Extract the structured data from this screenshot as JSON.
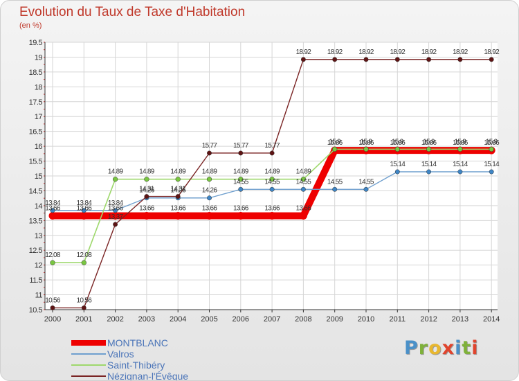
{
  "title": "Evolution du Taux de Taxe d'Habitation",
  "unit": "(en %)",
  "brand": {
    "letters": [
      {
        "ch": "P",
        "color": "#4a90c8"
      },
      {
        "ch": "r",
        "color": "#7fb13a"
      },
      {
        "ch": "o",
        "color": "#e8b72f"
      },
      {
        "ch": "x",
        "color": "#e0442d"
      },
      {
        "ch": "i",
        "color": "#4a90c8"
      },
      {
        "ch": "t",
        "color": "#7fb13a"
      },
      {
        "ch": "i",
        "color": "#e0442d"
      }
    ]
  },
  "chart_data": {
    "type": "line",
    "title": "Evolution du Taux de Taxe d'Habitation",
    "ylabel": "(en %)",
    "x": [
      "2000",
      "2001",
      "2002",
      "2003",
      "2004",
      "2005",
      "2006",
      "2007",
      "2008",
      "2009",
      "2010",
      "2011",
      "2012",
      "2013",
      "2014"
    ],
    "ylim": [
      10.5,
      19.5
    ],
    "yticks": [
      "10.5",
      "11",
      "11.5",
      "12",
      "12.5",
      "13",
      "13.5",
      "14",
      "14.5",
      "15",
      "15.5",
      "16",
      "16.5",
      "17",
      "17.5",
      "18",
      "18.5",
      "19",
      "19.5"
    ],
    "grid": true,
    "legend_position": "bottom-left",
    "series": [
      {
        "name": "MONTBLANC",
        "color": "#ee0000",
        "point_color": "#ee0000",
        "values": [
          13.66,
          13.66,
          13.66,
          13.66,
          13.66,
          13.66,
          13.66,
          13.66,
          13.66,
          15.86,
          15.86,
          15.86,
          15.86,
          15.86,
          15.86
        ],
        "labels": [
          "13.66",
          "13.66",
          "13.66",
          "13.66",
          "13.66",
          "13.66",
          "13.66",
          "13.66",
          "13.66",
          "15.86",
          "15.86",
          "15.86",
          "15.86",
          "15.86",
          "15.86"
        ]
      },
      {
        "name": "Valros",
        "color": "#6f9fce",
        "point_color": "#3f86c6",
        "values": [
          13.84,
          13.84,
          13.84,
          14.26,
          14.26,
          14.26,
          14.55,
          14.55,
          14.55,
          14.55,
          14.55,
          15.14,
          15.14,
          15.14,
          15.14
        ],
        "labels": [
          "13.84",
          "13.84",
          "13.84",
          "14.26",
          "14.26",
          "14.26",
          "14.55",
          "14.55",
          "14.55",
          "14.55",
          "14.55",
          "15.14",
          "15.14",
          "15.14",
          "15.14"
        ]
      },
      {
        "name": "Saint-Thibéry",
        "color": "#9ed86c",
        "point_color": "#79c641",
        "values": [
          12.08,
          12.08,
          14.89,
          14.89,
          14.89,
          14.89,
          14.89,
          14.89,
          14.89,
          15.9,
          15.9,
          15.9,
          15.9,
          15.9,
          15.9
        ],
        "labels": [
          "12.08",
          "12.08",
          "14.89",
          "14.89",
          "14.89",
          "14.89",
          "14.89",
          "14.89",
          "14.89",
          "15.9",
          "15.9",
          "15.9",
          "15.9",
          "15.9",
          "15.9"
        ]
      },
      {
        "name": "Nézignan-l'Évêque",
        "color": "#7a2424",
        "point_color": "#5e1414",
        "values": [
          10.56,
          10.56,
          13.37,
          14.31,
          14.31,
          15.77,
          15.77,
          15.77,
          18.92,
          18.92,
          18.92,
          18.92,
          18.92,
          18.92,
          18.92
        ],
        "labels": [
          "10.56",
          "10.56",
          "13.37",
          "14.31",
          "14.31",
          "15.77",
          "15.77",
          "15.77",
          "18.92",
          "18.92",
          "18.92",
          "18.92",
          "18.92",
          "18.92",
          "18.92"
        ]
      }
    ]
  }
}
